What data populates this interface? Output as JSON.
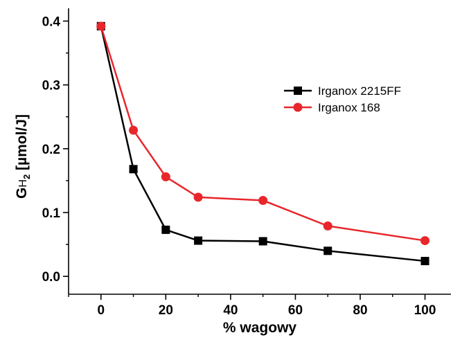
{
  "chart_data": {
    "type": "line",
    "title": "",
    "xlabel": "% wagowy",
    "ylabel": {
      "base": "G",
      "sub_letter": "H",
      "sub_digit": "2",
      "unit": " [µmol/J]"
    },
    "xlim": [
      -10,
      108
    ],
    "ylim": [
      -0.028,
      0.42
    ],
    "xticks": [
      0,
      20,
      40,
      60,
      80,
      100
    ],
    "xtick_labels": [
      "0",
      "20",
      "40",
      "60",
      "80",
      "100"
    ],
    "yticks": [
      0.0,
      0.1,
      0.2,
      0.3,
      0.4
    ],
    "ytick_labels": [
      "0.0",
      "0.1",
      "0.2",
      "0.3",
      "0.4"
    ],
    "grid": false,
    "legend_position": "top-right",
    "series": [
      {
        "name": "Irganox 2215FF",
        "color": "#000000",
        "marker": "square",
        "x": [
          0,
          10,
          20,
          30,
          50,
          70,
          100
        ],
        "y": [
          0.392,
          0.168,
          0.073,
          0.056,
          0.055,
          0.04,
          0.024
        ]
      },
      {
        "name": "Irganox 168",
        "color": "#e8262b",
        "marker": "circle",
        "x": [
          0,
          10,
          20,
          30,
          50,
          70,
          100
        ],
        "y": [
          0.392,
          0.229,
          0.156,
          0.124,
          0.119,
          0.079,
          0.056
        ]
      }
    ]
  }
}
